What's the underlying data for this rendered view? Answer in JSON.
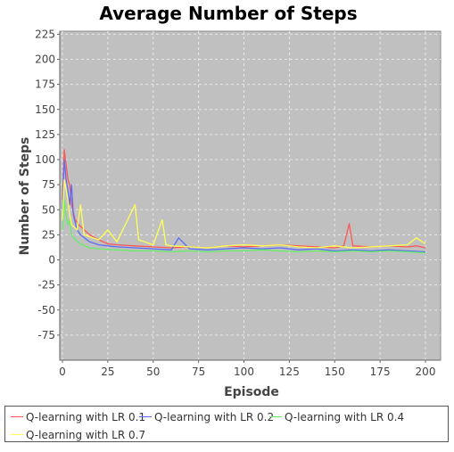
{
  "chart_data": {
    "type": "line",
    "title": "Average Number of Steps",
    "xlabel": "Episode",
    "ylabel": "Number of Steps",
    "xlim": [
      0,
      200
    ],
    "ylim": [
      -100,
      225
    ],
    "xticks": [
      "0",
      "25",
      "50",
      "75",
      "100",
      "125",
      "150",
      "175",
      "200"
    ],
    "yticks": [
      "225",
      "200",
      "175",
      "150",
      "125",
      "100",
      "75",
      "50",
      "25",
      "0",
      "-25",
      "-50",
      "-75"
    ],
    "grid": true,
    "legend_position": "bottom",
    "colors": {
      "plot_background": "#c0c0c0",
      "grid": "#e6e6e6"
    },
    "series": [
      {
        "name": "Q-learning with LR 0.1",
        "color": "#ff5555",
        "points": [
          [
            0,
            60
          ],
          [
            1,
            110
          ],
          [
            2,
            95
          ],
          [
            3,
            80
          ],
          [
            4,
            75
          ],
          [
            5,
            55
          ],
          [
            7,
            40
          ],
          [
            9,
            35
          ],
          [
            12,
            30
          ],
          [
            15,
            25
          ],
          [
            20,
            20
          ],
          [
            25,
            16
          ],
          [
            30,
            15
          ],
          [
            40,
            14
          ],
          [
            50,
            13
          ],
          [
            60,
            12
          ],
          [
            70,
            13
          ],
          [
            80,
            12
          ],
          [
            90,
            14
          ],
          [
            100,
            13
          ],
          [
            110,
            14
          ],
          [
            120,
            15
          ],
          [
            130,
            14
          ],
          [
            140,
            13
          ],
          [
            150,
            12
          ],
          [
            155,
            14
          ],
          [
            158,
            36
          ],
          [
            160,
            14
          ],
          [
            170,
            13
          ],
          [
            180,
            14
          ],
          [
            190,
            13
          ],
          [
            195,
            14
          ],
          [
            200,
            12
          ]
        ]
      },
      {
        "name": "Q-learning with LR 0.2",
        "color": "#5b6cf5",
        "points": [
          [
            0,
            50
          ],
          [
            1,
            100
          ],
          [
            2,
            80
          ],
          [
            3,
            70
          ],
          [
            4,
            55
          ],
          [
            5,
            75
          ],
          [
            6,
            45
          ],
          [
            8,
            30
          ],
          [
            10,
            25
          ],
          [
            15,
            18
          ],
          [
            20,
            15
          ],
          [
            25,
            14
          ],
          [
            30,
            13
          ],
          [
            40,
            12
          ],
          [
            50,
            11
          ],
          [
            60,
            10
          ],
          [
            64,
            22
          ],
          [
            70,
            11
          ],
          [
            80,
            10
          ],
          [
            90,
            11
          ],
          [
            100,
            12
          ],
          [
            110,
            11
          ],
          [
            120,
            12
          ],
          [
            130,
            10
          ],
          [
            140,
            11
          ],
          [
            150,
            9
          ],
          [
            160,
            10
          ],
          [
            170,
            9
          ],
          [
            180,
            10
          ],
          [
            190,
            9
          ],
          [
            200,
            8
          ]
        ]
      },
      {
        "name": "Q-learning with LR 0.4",
        "color": "#66ee66",
        "points": [
          [
            0,
            30
          ],
          [
            1,
            60
          ],
          [
            2,
            45
          ],
          [
            3,
            35
          ],
          [
            4,
            40
          ],
          [
            5,
            25
          ],
          [
            7,
            20
          ],
          [
            10,
            16
          ],
          [
            15,
            12
          ],
          [
            20,
            11
          ],
          [
            30,
            10
          ],
          [
            40,
            9
          ],
          [
            50,
            9
          ],
          [
            60,
            8
          ],
          [
            70,
            9
          ],
          [
            80,
            8
          ],
          [
            90,
            9
          ],
          [
            100,
            9
          ],
          [
            110,
            10
          ],
          [
            120,
            9
          ],
          [
            130,
            8
          ],
          [
            140,
            9
          ],
          [
            150,
            8
          ],
          [
            160,
            9
          ],
          [
            170,
            8
          ],
          [
            180,
            9
          ],
          [
            190,
            8
          ],
          [
            200,
            7
          ]
        ]
      },
      {
        "name": "Q-learning with LR 0.7",
        "color": "#ffff55",
        "points": [
          [
            0,
            40
          ],
          [
            1,
            80
          ],
          [
            2,
            70
          ],
          [
            3,
            60
          ],
          [
            4,
            45
          ],
          [
            5,
            35
          ],
          [
            8,
            30
          ],
          [
            10,
            55
          ],
          [
            12,
            25
          ],
          [
            20,
            20
          ],
          [
            25,
            30
          ],
          [
            30,
            18
          ],
          [
            40,
            55
          ],
          [
            42,
            20
          ],
          [
            50,
            15
          ],
          [
            55,
            40
          ],
          [
            57,
            15
          ],
          [
            60,
            14
          ],
          [
            70,
            13
          ],
          [
            80,
            12
          ],
          [
            90,
            14
          ],
          [
            100,
            15
          ],
          [
            110,
            14
          ],
          [
            120,
            15
          ],
          [
            130,
            13
          ],
          [
            140,
            12
          ],
          [
            150,
            14
          ],
          [
            160,
            12
          ],
          [
            170,
            13
          ],
          [
            180,
            14
          ],
          [
            190,
            15
          ],
          [
            195,
            22
          ],
          [
            200,
            16
          ]
        ]
      }
    ]
  }
}
